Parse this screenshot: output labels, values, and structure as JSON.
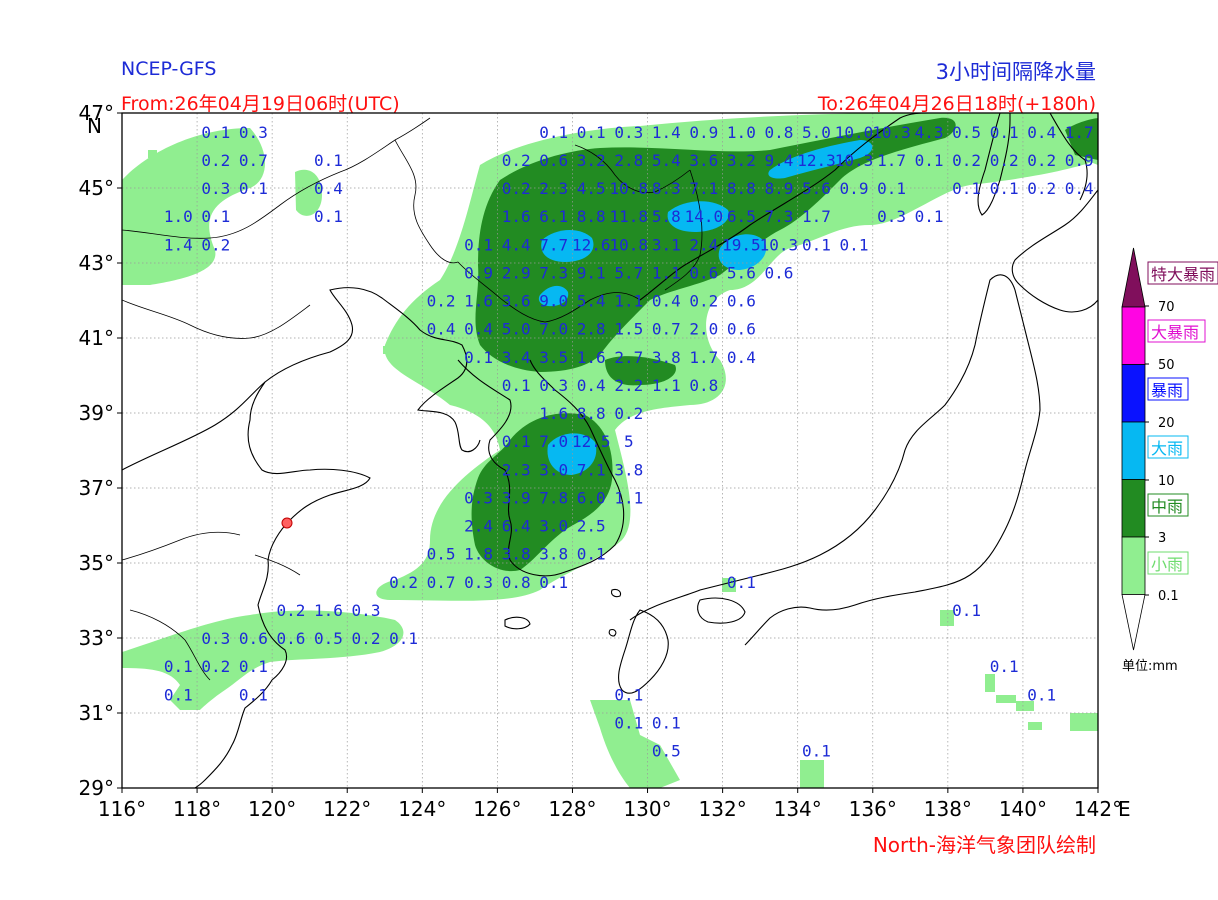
{
  "header": {
    "source": "NCEP-GFS",
    "title": "3小时间隔降水量",
    "from": "From:26年04月19日06时(UTC)",
    "to": "To:26年04月26日18时(+180h)"
  },
  "footer": {
    "credit": "North-海洋气象团队绘制"
  },
  "axes": {
    "lat_labels": [
      "47°",
      "45°",
      "43°",
      "41°",
      "39°",
      "37°",
      "35°",
      "33°",
      "31°",
      "29°"
    ],
    "lon_labels": [
      "116°",
      "118°",
      "120°",
      "122°",
      "124°",
      "126°",
      "128°",
      "130°",
      "132°",
      "134°",
      "136°",
      "138°",
      "140°",
      "142°"
    ],
    "north_marker": "N",
    "east_marker": "E"
  },
  "legend": {
    "unit": "单位:mm",
    "categories": [
      {
        "label": "特大暴雨",
        "color": "#800f5c",
        "text_color": "#800f5c"
      },
      {
        "label": "大暴雨",
        "color": "#ff05e3",
        "text_color": "#e010d0"
      },
      {
        "label": "暴雨",
        "color": "#0a12ff",
        "text_color": "#0a12ff"
      },
      {
        "label": "大雨",
        "color": "#06b8f2",
        "text_color": "#06b8f2"
      },
      {
        "label": "中雨",
        "color": "#228b22",
        "text_color": "#228b22"
      },
      {
        "label": "小雨",
        "color": "#90ee90",
        "text_color": "#6fdc6f"
      }
    ],
    "thresholds": [
      "70",
      "50",
      "20",
      "10",
      "3",
      "0.1"
    ]
  },
  "values": [
    {
      "lat": 46.5,
      "lon": 118.5,
      "v": "0.1"
    },
    {
      "lat": 46.5,
      "lon": 119.5,
      "v": "0.3"
    },
    {
      "lat": 45.75,
      "lon": 118.5,
      "v": "0.2"
    },
    {
      "lat": 45.75,
      "lon": 119.5,
      "v": "0.7"
    },
    {
      "lat": 45.75,
      "lon": 121.5,
      "v": "0.1"
    },
    {
      "lat": 45.0,
      "lon": 118.5,
      "v": "0.3"
    },
    {
      "lat": 45.0,
      "lon": 119.5,
      "v": "0.1"
    },
    {
      "lat": 45.0,
      "lon": 121.5,
      "v": "0.4"
    },
    {
      "lat": 44.25,
      "lon": 117.5,
      "v": "1.0"
    },
    {
      "lat": 44.25,
      "lon": 118.5,
      "v": "0.1"
    },
    {
      "lat": 44.25,
      "lon": 121.5,
      "v": "0.1"
    },
    {
      "lat": 43.5,
      "lon": 117.5,
      "v": "1.4"
    },
    {
      "lat": 43.5,
      "lon": 118.5,
      "v": "0.2"
    },
    {
      "lat": 46.5,
      "lon": 127.5,
      "v": "0.1"
    },
    {
      "lat": 46.5,
      "lon": 128.5,
      "v": "0.1"
    },
    {
      "lat": 46.5,
      "lon": 129.5,
      "v": "0.3"
    },
    {
      "lat": 46.5,
      "lon": 130.5,
      "v": "1.4"
    },
    {
      "lat": 46.5,
      "lon": 131.5,
      "v": "0.9"
    },
    {
      "lat": 46.5,
      "lon": 132.5,
      "v": "1.0"
    },
    {
      "lat": 46.5,
      "lon": 133.5,
      "v": "0.8"
    },
    {
      "lat": 46.5,
      "lon": 134.5,
      "v": "5.0"
    },
    {
      "lat": 46.5,
      "lon": 135.5,
      "v": "10.0"
    },
    {
      "lat": 46.5,
      "lon": 136.5,
      "v": "10.3"
    },
    {
      "lat": 46.5,
      "lon": 137.5,
      "v": "4.3"
    },
    {
      "lat": 46.5,
      "lon": 138.5,
      "v": "0.5"
    },
    {
      "lat": 46.5,
      "lon": 139.5,
      "v": "0.1"
    },
    {
      "lat": 46.5,
      "lon": 140.5,
      "v": "0.4"
    },
    {
      "lat": 46.5,
      "lon": 141.5,
      "v": "1.7"
    },
    {
      "lat": 45.75,
      "lon": 126.5,
      "v": "0.2"
    },
    {
      "lat": 45.75,
      "lon": 127.5,
      "v": "0.6"
    },
    {
      "lat": 45.75,
      "lon": 128.5,
      "v": "3.2"
    },
    {
      "lat": 45.75,
      "lon": 129.5,
      "v": "2.8"
    },
    {
      "lat": 45.75,
      "lon": 130.5,
      "v": "5.4"
    },
    {
      "lat": 45.75,
      "lon": 131.5,
      "v": "3.6"
    },
    {
      "lat": 45.75,
      "lon": 132.5,
      "v": "3.2"
    },
    {
      "lat": 45.75,
      "lon": 133.5,
      "v": "9.4"
    },
    {
      "lat": 45.75,
      "lon": 134.5,
      "v": "12.3"
    },
    {
      "lat": 45.75,
      "lon": 135.5,
      "v": "10.3"
    },
    {
      "lat": 45.75,
      "lon": 136.5,
      "v": "1.7"
    },
    {
      "lat": 45.75,
      "lon": 137.5,
      "v": "0.1"
    },
    {
      "lat": 45.75,
      "lon": 138.5,
      "v": "0.2"
    },
    {
      "lat": 45.75,
      "lon": 139.5,
      "v": "0.2"
    },
    {
      "lat": 45.75,
      "lon": 140.5,
      "v": "0.2"
    },
    {
      "lat": 45.75,
      "lon": 141.5,
      "v": "0.9"
    },
    {
      "lat": 45.0,
      "lon": 126.5,
      "v": "0.2"
    },
    {
      "lat": 45.0,
      "lon": 127.5,
      "v": "2.3"
    },
    {
      "lat": 45.0,
      "lon": 128.5,
      "v": "4.5"
    },
    {
      "lat": 45.0,
      "lon": 129.5,
      "v": "10.8"
    },
    {
      "lat": 45.0,
      "lon": 130.5,
      "v": "8.3"
    },
    {
      "lat": 45.0,
      "lon": 131.5,
      "v": "7.1"
    },
    {
      "lat": 45.0,
      "lon": 132.5,
      "v": "8.8"
    },
    {
      "lat": 45.0,
      "lon": 133.5,
      "v": "8.9"
    },
    {
      "lat": 45.0,
      "lon": 134.5,
      "v": "5.6"
    },
    {
      "lat": 45.0,
      "lon": 135.5,
      "v": "0.9"
    },
    {
      "lat": 45.0,
      "lon": 136.5,
      "v": "0.1"
    },
    {
      "lat": 45.0,
      "lon": 138.5,
      "v": "0.1"
    },
    {
      "lat": 45.0,
      "lon": 139.5,
      "v": "0.1"
    },
    {
      "lat": 45.0,
      "lon": 140.5,
      "v": "0.2"
    },
    {
      "lat": 45.0,
      "lon": 141.5,
      "v": "0.4"
    },
    {
      "lat": 44.25,
      "lon": 126.5,
      "v": "1.6"
    },
    {
      "lat": 44.25,
      "lon": 127.5,
      "v": "6.1"
    },
    {
      "lat": 44.25,
      "lon": 128.5,
      "v": "8.8"
    },
    {
      "lat": 44.25,
      "lon": 129.5,
      "v": "11.8"
    },
    {
      "lat": 44.25,
      "lon": 130.5,
      "v": "5.8"
    },
    {
      "lat": 44.25,
      "lon": 131.5,
      "v": "14.0"
    },
    {
      "lat": 44.25,
      "lon": 132.5,
      "v": "6.5"
    },
    {
      "lat": 44.25,
      "lon": 133.5,
      "v": "7.3"
    },
    {
      "lat": 44.25,
      "lon": 134.5,
      "v": "1.7"
    },
    {
      "lat": 44.25,
      "lon": 136.5,
      "v": "0.3"
    },
    {
      "lat": 44.25,
      "lon": 137.5,
      "v": "0.1"
    },
    {
      "lat": 43.5,
      "lon": 125.5,
      "v": "0.1"
    },
    {
      "lat": 43.5,
      "lon": 126.5,
      "v": "4.4"
    },
    {
      "lat": 43.5,
      "lon": 127.5,
      "v": "7.7"
    },
    {
      "lat": 43.5,
      "lon": 128.5,
      "v": "12.6"
    },
    {
      "lat": 43.5,
      "lon": 129.5,
      "v": "10.8"
    },
    {
      "lat": 43.5,
      "lon": 130.5,
      "v": "3.1"
    },
    {
      "lat": 43.5,
      "lon": 131.5,
      "v": "2.4"
    },
    {
      "lat": 43.5,
      "lon": 132.5,
      "v": "19.5"
    },
    {
      "lat": 43.5,
      "lon": 133.5,
      "v": "10.3"
    },
    {
      "lat": 43.5,
      "lon": 134.5,
      "v": "0.1"
    },
    {
      "lat": 43.5,
      "lon": 135.5,
      "v": "0.1"
    },
    {
      "lat": 42.75,
      "lon": 125.5,
      "v": "0.9"
    },
    {
      "lat": 42.75,
      "lon": 126.5,
      "v": "2.9"
    },
    {
      "lat": 42.75,
      "lon": 127.5,
      "v": "7.3"
    },
    {
      "lat": 42.75,
      "lon": 128.5,
      "v": "9.1"
    },
    {
      "lat": 42.75,
      "lon": 129.5,
      "v": "5.7"
    },
    {
      "lat": 42.75,
      "lon": 130.5,
      "v": "1.1"
    },
    {
      "lat": 42.75,
      "lon": 131.5,
      "v": "0.6"
    },
    {
      "lat": 42.75,
      "lon": 132.5,
      "v": "5.6"
    },
    {
      "lat": 42.75,
      "lon": 133.5,
      "v": "0.6"
    },
    {
      "lat": 42.0,
      "lon": 124.5,
      "v": "0.2"
    },
    {
      "lat": 42.0,
      "lon": 125.5,
      "v": "1.6"
    },
    {
      "lat": 42.0,
      "lon": 126.5,
      "v": "3.6"
    },
    {
      "lat": 42.0,
      "lon": 127.5,
      "v": "9.0"
    },
    {
      "lat": 42.0,
      "lon": 128.5,
      "v": "5.4"
    },
    {
      "lat": 42.0,
      "lon": 129.5,
      "v": "1.1"
    },
    {
      "lat": 42.0,
      "lon": 130.5,
      "v": "0.4"
    },
    {
      "lat": 42.0,
      "lon": 131.5,
      "v": "0.2"
    },
    {
      "lat": 42.0,
      "lon": 132.5,
      "v": "0.6"
    },
    {
      "lat": 41.25,
      "lon": 124.5,
      "v": "0.4"
    },
    {
      "lat": 41.25,
      "lon": 125.5,
      "v": "0.4"
    },
    {
      "lat": 41.25,
      "lon": 126.5,
      "v": "5.0"
    },
    {
      "lat": 41.25,
      "lon": 127.5,
      "v": "7.0"
    },
    {
      "lat": 41.25,
      "lon": 128.5,
      "v": "2.8"
    },
    {
      "lat": 41.25,
      "lon": 129.5,
      "v": "1.5"
    },
    {
      "lat": 41.25,
      "lon": 130.5,
      "v": "0.7"
    },
    {
      "lat": 41.25,
      "lon": 131.5,
      "v": "2.0"
    },
    {
      "lat": 41.25,
      "lon": 132.5,
      "v": "0.6"
    },
    {
      "lat": 40.5,
      "lon": 125.5,
      "v": "0.1"
    },
    {
      "lat": 40.5,
      "lon": 126.5,
      "v": "3.4"
    },
    {
      "lat": 40.5,
      "lon": 127.5,
      "v": "3.5"
    },
    {
      "lat": 40.5,
      "lon": 128.5,
      "v": "1.6"
    },
    {
      "lat": 40.5,
      "lon": 129.5,
      "v": "2.7"
    },
    {
      "lat": 40.5,
      "lon": 130.5,
      "v": "3.8"
    },
    {
      "lat": 40.5,
      "lon": 131.5,
      "v": "1.7"
    },
    {
      "lat": 40.5,
      "lon": 132.5,
      "v": "0.4"
    },
    {
      "lat": 39.75,
      "lon": 126.5,
      "v": "0.1"
    },
    {
      "lat": 39.75,
      "lon": 127.5,
      "v": "0.3"
    },
    {
      "lat": 39.75,
      "lon": 128.5,
      "v": "0.4"
    },
    {
      "lat": 39.75,
      "lon": 129.5,
      "v": "2.2"
    },
    {
      "lat": 39.75,
      "lon": 130.5,
      "v": "1.1"
    },
    {
      "lat": 39.75,
      "lon": 131.5,
      "v": "0.8"
    },
    {
      "lat": 39.0,
      "lon": 127.5,
      "v": "1.6"
    },
    {
      "lat": 39.0,
      "lon": 128.5,
      "v": "8.8"
    },
    {
      "lat": 39.0,
      "lon": 129.5,
      "v": "0.2"
    },
    {
      "lat": 38.25,
      "lon": 126.5,
      "v": "0.1"
    },
    {
      "lat": 38.25,
      "lon": 127.5,
      "v": "7.0"
    },
    {
      "lat": 38.25,
      "lon": 128.5,
      "v": "12.5"
    },
    {
      "lat": 38.25,
      "lon": 129.5,
      "v": "5"
    },
    {
      "lat": 37.5,
      "lon": 126.5,
      "v": "2.3"
    },
    {
      "lat": 37.5,
      "lon": 127.5,
      "v": "3.0"
    },
    {
      "lat": 37.5,
      "lon": 128.5,
      "v": "7.1"
    },
    {
      "lat": 37.5,
      "lon": 129.5,
      "v": "3.8"
    },
    {
      "lat": 36.75,
      "lon": 125.5,
      "v": "0.3"
    },
    {
      "lat": 36.75,
      "lon": 126.5,
      "v": "3.9"
    },
    {
      "lat": 36.75,
      "lon": 127.5,
      "v": "7.8"
    },
    {
      "lat": 36.75,
      "lon": 128.5,
      "v": "6.0"
    },
    {
      "lat": 36.75,
      "lon": 129.5,
      "v": "1.1"
    },
    {
      "lat": 36.0,
      "lon": 125.5,
      "v": "2.4"
    },
    {
      "lat": 36.0,
      "lon": 126.5,
      "v": "6.4"
    },
    {
      "lat": 36.0,
      "lon": 127.5,
      "v": "3.0"
    },
    {
      "lat": 36.0,
      "lon": 128.5,
      "v": "2.5"
    },
    {
      "lat": 35.25,
      "lon": 124.5,
      "v": "0.5"
    },
    {
      "lat": 35.25,
      "lon": 125.5,
      "v": "1.8"
    },
    {
      "lat": 35.25,
      "lon": 126.5,
      "v": "3.8"
    },
    {
      "lat": 35.25,
      "lon": 127.5,
      "v": "3.8"
    },
    {
      "lat": 35.25,
      "lon": 128.5,
      "v": "0.1"
    },
    {
      "lat": 34.5,
      "lon": 123.5,
      "v": "0.2"
    },
    {
      "lat": 34.5,
      "lon": 124.5,
      "v": "0.7"
    },
    {
      "lat": 34.5,
      "lon": 125.5,
      "v": "0.3"
    },
    {
      "lat": 34.5,
      "lon": 126.5,
      "v": "0.8"
    },
    {
      "lat": 34.5,
      "lon": 127.5,
      "v": "0.1"
    },
    {
      "lat": 34.5,
      "lon": 132.5,
      "v": "0.1"
    },
    {
      "lat": 33.75,
      "lon": 120.5,
      "v": "0.2"
    },
    {
      "lat": 33.75,
      "lon": 121.5,
      "v": "1.6"
    },
    {
      "lat": 33.75,
      "lon": 122.5,
      "v": "0.3"
    },
    {
      "lat": 33.75,
      "lon": 138.5,
      "v": "0.1"
    },
    {
      "lat": 33.0,
      "lon": 118.5,
      "v": "0.3"
    },
    {
      "lat": 33.0,
      "lon": 119.5,
      "v": "0.6"
    },
    {
      "lat": 33.0,
      "lon": 120.5,
      "v": "0.6"
    },
    {
      "lat": 33.0,
      "lon": 121.5,
      "v": "0.5"
    },
    {
      "lat": 33.0,
      "lon": 122.5,
      "v": "0.2"
    },
    {
      "lat": 33.0,
      "lon": 123.5,
      "v": "0.1"
    },
    {
      "lat": 32.25,
      "lon": 117.5,
      "v": "0.1"
    },
    {
      "lat": 32.25,
      "lon": 118.5,
      "v": "0.2"
    },
    {
      "lat": 32.25,
      "lon": 119.5,
      "v": "0.1"
    },
    {
      "lat": 32.25,
      "lon": 139.5,
      "v": "0.1"
    },
    {
      "lat": 31.5,
      "lon": 117.5,
      "v": "0.1"
    },
    {
      "lat": 31.5,
      "lon": 119.5,
      "v": "0.1"
    },
    {
      "lat": 31.5,
      "lon": 129.5,
      "v": "0.1"
    },
    {
      "lat": 31.5,
      "lon": 140.5,
      "v": "0.1"
    },
    {
      "lat": 30.75,
      "lon": 129.5,
      "v": "0.1"
    },
    {
      "lat": 30.75,
      "lon": 130.5,
      "v": "0.1"
    },
    {
      "lat": 30.0,
      "lon": 130.5,
      "v": "0.5"
    },
    {
      "lat": 30.0,
      "lon": 134.5,
      "v": "0.1"
    }
  ]
}
